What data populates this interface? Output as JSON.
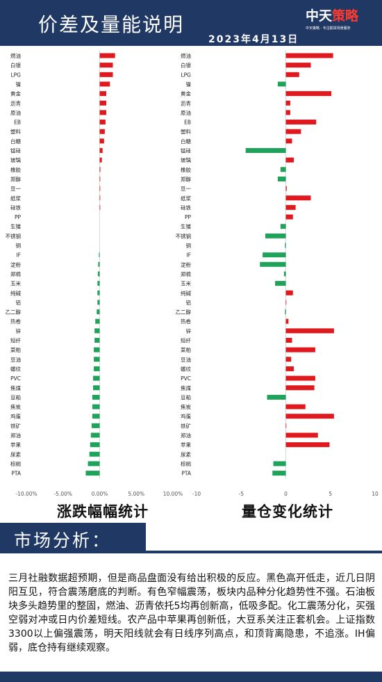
{
  "header": {
    "title": "价差及量能说明",
    "date": "2023年4月13日",
    "logo_main_a": "中天",
    "logo_main_b": "策略",
    "logo_sub": "中天策略 · 专注期货场景服务"
  },
  "colors": {
    "navy": "#203864",
    "up": "#e0191e",
    "down": "#1fa35a"
  },
  "chart_data": [
    {
      "type": "bar",
      "orientation": "horizontal",
      "title": "涨跌幅幅统计",
      "xlim": [
        -10,
        10
      ],
      "ticks": [
        "-10.00%",
        "-5.00%",
        "0.00%",
        "5.00%",
        "10.00%"
      ],
      "tick_values": [
        -10,
        -5,
        0,
        5,
        10
      ],
      "categories": [
        "燃油",
        "白银",
        "LPG",
        "镍",
        "黄金",
        "沥青",
        "原油",
        "EB",
        "塑料",
        "白糖",
        "锰硅",
        "玻璃",
        "橡胶",
        "郑醇",
        "豆一",
        "纸浆",
        "硅铁",
        "PP",
        "生猪",
        "不锈钢",
        "铜",
        "IF",
        "淀粉",
        "郑棉",
        "玉米",
        "纯碱",
        "铝",
        "乙二醇",
        "热卷",
        "锌",
        "短纤",
        "菜粕",
        "豆油",
        "螺纹",
        "PVC",
        "焦煤",
        "豆粕",
        "焦炭",
        "鸡蛋",
        "铁矿",
        "郑油",
        "苹果",
        "尿素",
        "棕榈",
        "PTA"
      ],
      "values": [
        2.1,
        1.8,
        1.8,
        1.4,
        0.9,
        0.9,
        0.9,
        0.8,
        0.7,
        0.6,
        0.4,
        0.3,
        0.1,
        0.05,
        0.05,
        0.05,
        0.05,
        0,
        0,
        0,
        0,
        -0.1,
        -0.2,
        -0.25,
        -0.3,
        -0.3,
        -0.3,
        -0.4,
        -0.6,
        -0.7,
        -0.7,
        -0.8,
        -0.8,
        -0.8,
        -0.9,
        -0.9,
        -1.0,
        -1.0,
        -1.0,
        -1.1,
        -1.2,
        -1.3,
        -1.4,
        -1.6,
        -1.9
      ]
    },
    {
      "type": "bar",
      "orientation": "horizontal",
      "title": "量仓变化统计",
      "xlim": [
        -10,
        10
      ],
      "ticks": [
        "-10",
        "-5",
        "0",
        "5",
        "10"
      ],
      "tick_values": [
        -10,
        -5,
        0,
        5,
        10
      ],
      "categories": [
        "燃油",
        "白银",
        "LPG",
        "镍",
        "黄金",
        "沥青",
        "原油",
        "EB",
        "塑料",
        "白糖",
        "锰硅",
        "玻璃",
        "橡胶",
        "郑醇",
        "豆一",
        "纸浆",
        "硅铁",
        "PP",
        "生猪",
        "不锈钢",
        "铜",
        "IF",
        "淀粉",
        "郑棉",
        "玉米",
        "纯碱",
        "铝",
        "乙二醇",
        "热卷",
        "锌",
        "短纤",
        "菜粕",
        "豆油",
        "螺纹",
        "PVC",
        "焦煤",
        "豆粕",
        "焦炭",
        "鸡蛋",
        "铁矿",
        "郑油",
        "苹果",
        "尿素",
        "棕榈",
        "PTA"
      ],
      "values": [
        5.3,
        2.8,
        1.5,
        -0.9,
        5.1,
        0.5,
        0.5,
        3.4,
        1.7,
        0.7,
        -4.5,
        0.9,
        -0.6,
        -0.9,
        0.1,
        2.8,
        1.1,
        0.8,
        -0.6,
        -2.3,
        -0.1,
        -2.6,
        -2.9,
        -0.2,
        -1.2,
        0.8,
        0.05,
        -0.1,
        0.3,
        5.4,
        0.7,
        3.3,
        0.6,
        0.9,
        3.3,
        3.2,
        -2.1,
        2.2,
        5.4,
        0.05,
        3.6,
        4.9,
        0,
        -1.4,
        -1.5
      ]
    }
  ],
  "section": {
    "title": "市场分析："
  },
  "analysis_text": "三月社融数据超预期，但是商品盘面没有给出积极的反应。黑色高开低走，近几日阴阳互见，符合震荡磨底的判断。有色窄幅震荡，板块内品种分化趋势性不强。石油板块多头趋势里的整固，燃油、沥青依托5均再创新高，低吸多配。化工震荡分化，买强空弱对冲或日内价差短线。农产品中苹果再创新低，大豆系关注正套机会。上证指数3300以上偏强震荡，明天阳线就会有日线序列高点，和顶背离隐患，不追涨。IH偏弱，底仓持有继续观察。"
}
